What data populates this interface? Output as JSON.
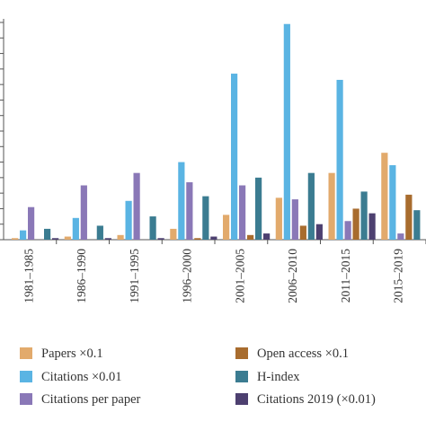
{
  "chart_data": {
    "type": "bar",
    "title": "",
    "xlabel": "",
    "ylabel": "",
    "ylim": [
      0,
      140
    ],
    "yticks": [
      0,
      10,
      20,
      30,
      40,
      50,
      60,
      70,
      80,
      90,
      100,
      110,
      120,
      130,
      140
    ],
    "ytick_labels_visible": false,
    "grid": false,
    "legend_position": "bottom",
    "categories": [
      "1981–1985",
      "1986–1990",
      "1991–1995",
      "1996–2000",
      "2001–2005",
      "2006–2010",
      "2011–2015",
      "2015–2019"
    ],
    "series": [
      {
        "name": "Papers ×0.1",
        "color": "#e2aa6c",
        "values": [
          1,
          2,
          3,
          7,
          16,
          27,
          43,
          56
        ]
      },
      {
        "name": "Citations ×0.01",
        "color": "#5ab4e3",
        "values": [
          6,
          14,
          25,
          50,
          107,
          139,
          103,
          48
        ]
      },
      {
        "name": "Citations per paper",
        "color": "#8a78b7",
        "values": [
          21,
          35,
          43,
          37,
          35,
          26,
          12,
          4
        ]
      },
      {
        "name": "Open access ×0.1",
        "color": "#a86c2e",
        "values": [
          0,
          0,
          0,
          1,
          3,
          9,
          20,
          29
        ]
      },
      {
        "name": "H-index",
        "color": "#3b7c91",
        "values": [
          7,
          9,
          15,
          28,
          40,
          43,
          31,
          19
        ]
      },
      {
        "name": "Citations 2019 (×0.01)",
        "color": "#4d4070",
        "values": [
          1,
          1,
          1,
          2,
          4,
          10,
          17,
          0
        ]
      }
    ]
  }
}
